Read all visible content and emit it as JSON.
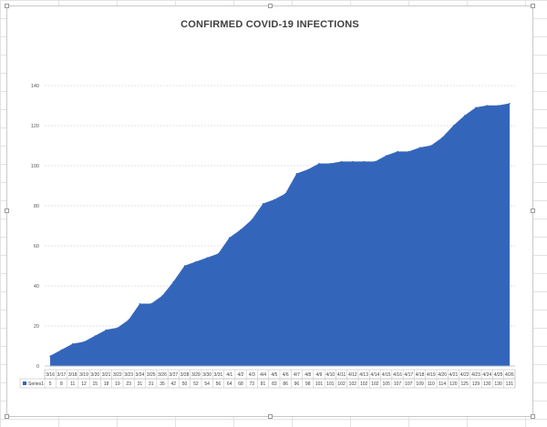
{
  "chart_data": {
    "type": "area",
    "title": "CONFIRMED COVID-19 INFECTIONS",
    "xlabel": "",
    "ylabel": "",
    "ylim": [
      0,
      140
    ],
    "yticks": [
      0,
      20,
      40,
      60,
      80,
      100,
      120,
      140
    ],
    "grid": true,
    "data_table": true,
    "categories": [
      "3/16",
      "3/17",
      "3/18",
      "3/19",
      "3/20",
      "3/21",
      "3/22",
      "3/23",
      "3/24",
      "3/25",
      "3/26",
      "3/27",
      "3/28",
      "3/29",
      "3/30",
      "3/31",
      "4/1",
      "4/2",
      "4/3",
      "4/4",
      "4/5",
      "4/6",
      "4/7",
      "4/8",
      "4/9",
      "4/10",
      "4/11",
      "4/12",
      "4/13",
      "4/14",
      "4/15",
      "4/16",
      "4/17",
      "4/18",
      "4/19",
      "4/20",
      "4/21",
      "4/22",
      "4/23",
      "4/24",
      "4/25",
      "4/26"
    ],
    "series": [
      {
        "name": "Series1",
        "color": "#3366bb",
        "values": [
          5,
          8,
          11,
          12,
          15,
          18,
          19,
          23,
          31,
          31,
          35,
          42,
          50,
          52,
          54,
          56,
          64,
          68,
          73,
          81,
          83,
          86,
          96,
          98,
          101,
          101,
          102,
          102,
          102,
          102,
          105,
          107,
          107,
          109,
          110,
          114,
          120,
          125,
          129,
          130,
          130,
          131
        ]
      }
    ]
  }
}
